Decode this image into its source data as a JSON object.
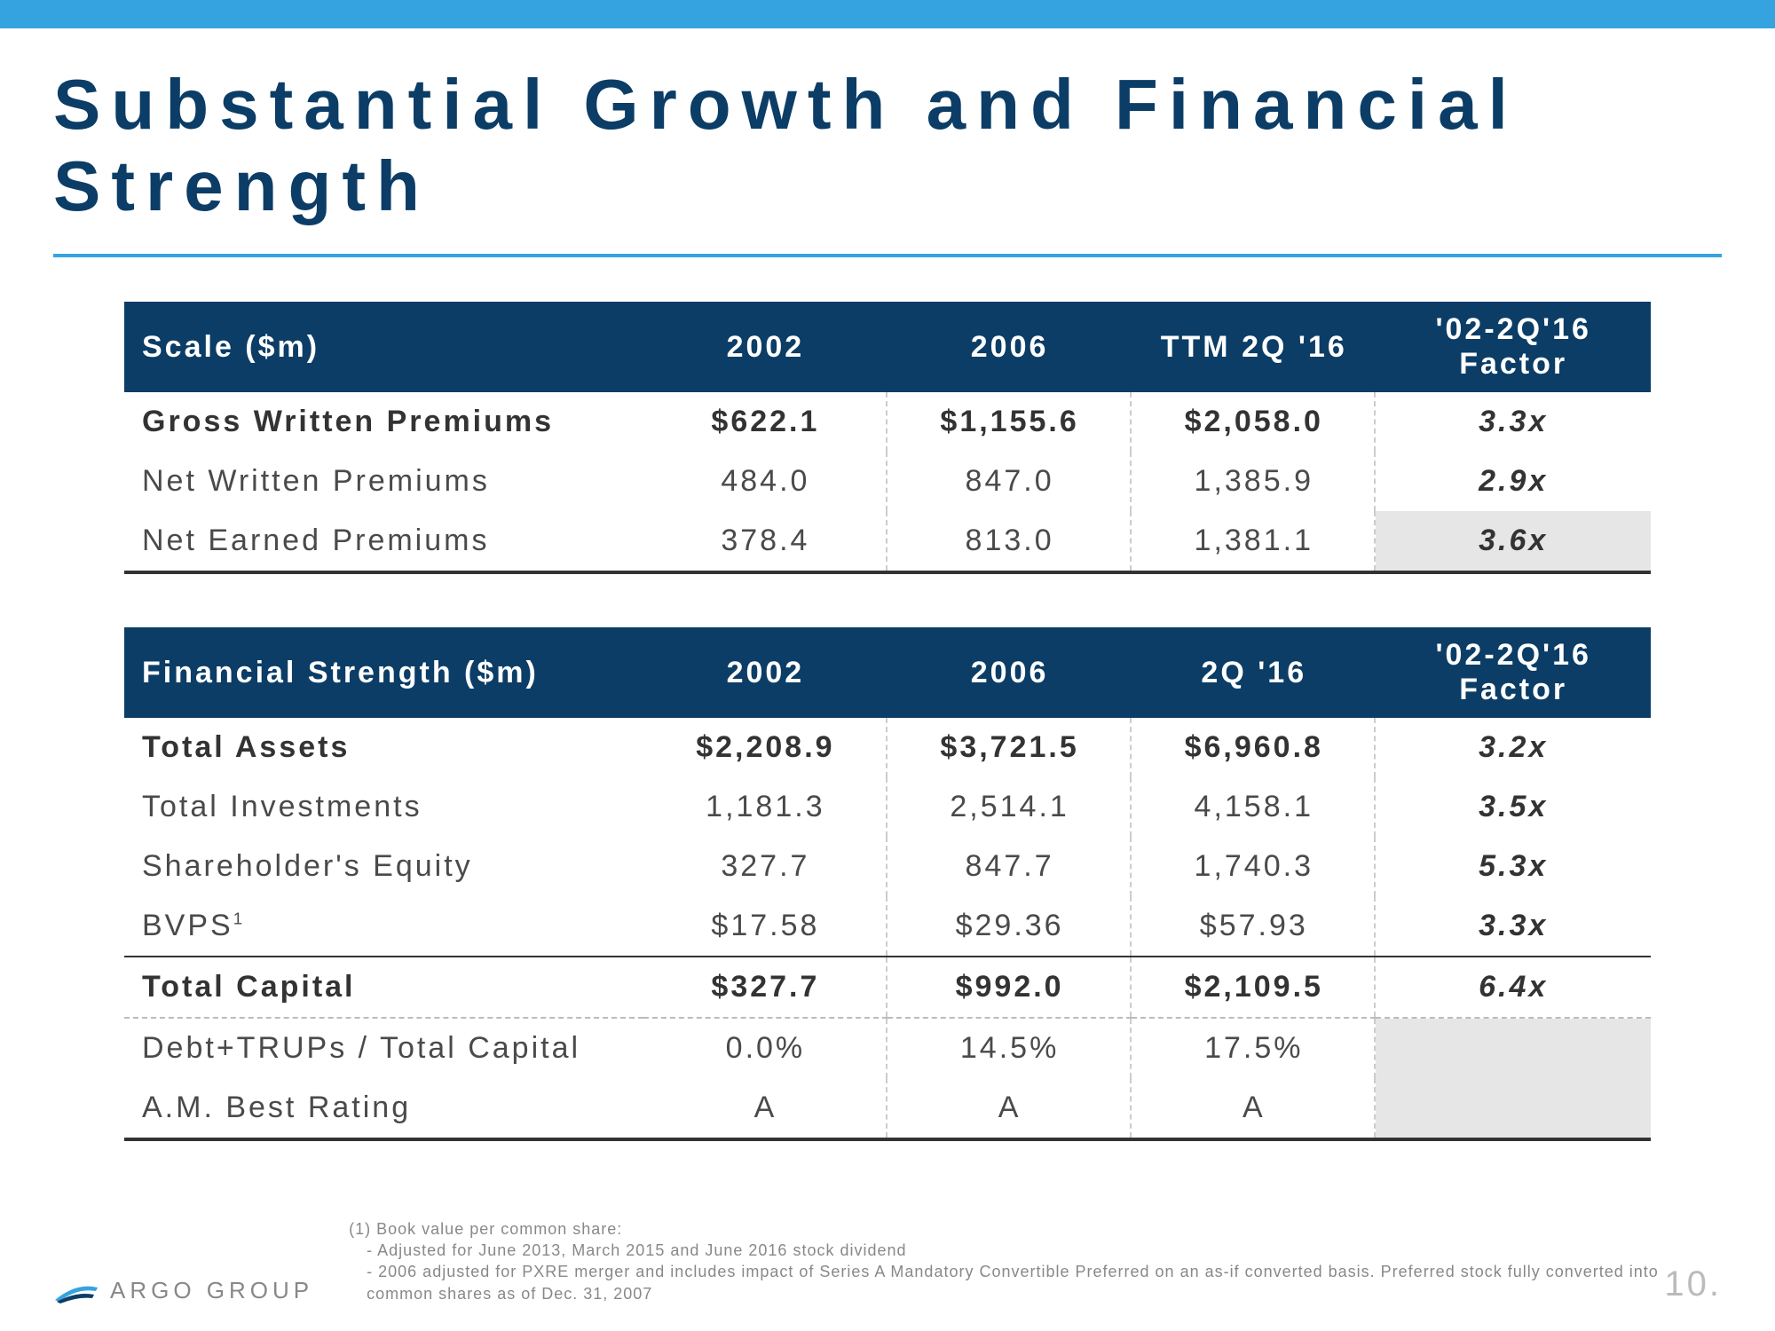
{
  "title": "Substantial Growth and Financial Strength",
  "colors": {
    "top_bar": "#35a3df",
    "title": "#0b3d66",
    "header_bg": "#0b3d66",
    "header_fg": "#ffffff",
    "body_text": "#4a4a4a",
    "shade": "#e6e6e6",
    "dash": "#cccccc",
    "rule": "#333333"
  },
  "scale": {
    "header": [
      "Scale ($m)",
      "2002",
      "2006",
      "TTM 2Q '16",
      "'02-2Q'16 Factor"
    ],
    "rows": [
      {
        "label": "Gross Written Premiums",
        "c2002": "$622.1",
        "c2006": "$1,155.6",
        "c2q16": "$2,058.0",
        "factor": "3.3x",
        "bold": true,
        "shade": false
      },
      {
        "label": "Net Written Premiums",
        "c2002": "484.0",
        "c2006": "847.0",
        "c2q16": "1,385.9",
        "factor": "2.9x",
        "bold": false,
        "shade": false
      },
      {
        "label": "Net Earned Premiums",
        "c2002": "378.4",
        "c2006": "813.0",
        "c2q16": "1,381.1",
        "factor": "3.6x",
        "bold": false,
        "shade": true
      }
    ]
  },
  "strength": {
    "header": [
      "Financial Strength ($m)",
      "2002",
      "2006",
      "2Q '16",
      "'02-2Q'16 Factor"
    ],
    "rows": [
      {
        "label": "Total Assets",
        "c2002": "$2,208.9",
        "c2006": "$3,721.5",
        "c2q16": "$6,960.8",
        "factor": "3.2x",
        "bold": true
      },
      {
        "label": "Total Investments",
        "c2002": "1,181.3",
        "c2006": "2,514.1",
        "c2q16": "4,158.1",
        "factor": "3.5x",
        "bold": false
      },
      {
        "label": "Shareholder's Equity",
        "c2002": "327.7",
        "c2006": "847.7",
        "c2q16": "1,740.3",
        "factor": "5.3x",
        "bold": false
      },
      {
        "label_html": "BVPS<sup class=\"sup\">1</sup>",
        "label": "BVPS1",
        "c2002": "$17.58",
        "c2006": "$29.36",
        "c2q16": "$57.93",
        "factor": "3.3x",
        "bold": false
      },
      {
        "label": "Total Capital",
        "c2002": "$327.7",
        "c2006": "$992.0",
        "c2q16": "$2,109.5",
        "factor": "6.4x",
        "bold": true
      },
      {
        "label": "Debt+TRUPs / Total Capital",
        "c2002": "0.0%",
        "c2006": "14.5%",
        "c2q16": "17.5%",
        "factor": "",
        "bold": false,
        "shade_factor": true
      },
      {
        "label": "A.M. Best Rating",
        "c2002": "A",
        "c2006": "A",
        "c2q16": "A",
        "factor": "",
        "bold": false,
        "shade_factor": true
      }
    ]
  },
  "footnotes": {
    "line1": "(1) Book value per common share:",
    "line2": "- Adjusted for June 2013, March 2015 and June 2016 stock dividend",
    "line3": "- 2006 adjusted for PXRE merger and includes impact of Series A Mandatory Convertible Preferred on an as-if converted basis. Preferred stock fully converted into common shares as of Dec. 31, 2007"
  },
  "logo_text": "ARGO GROUP",
  "page_number": "10."
}
